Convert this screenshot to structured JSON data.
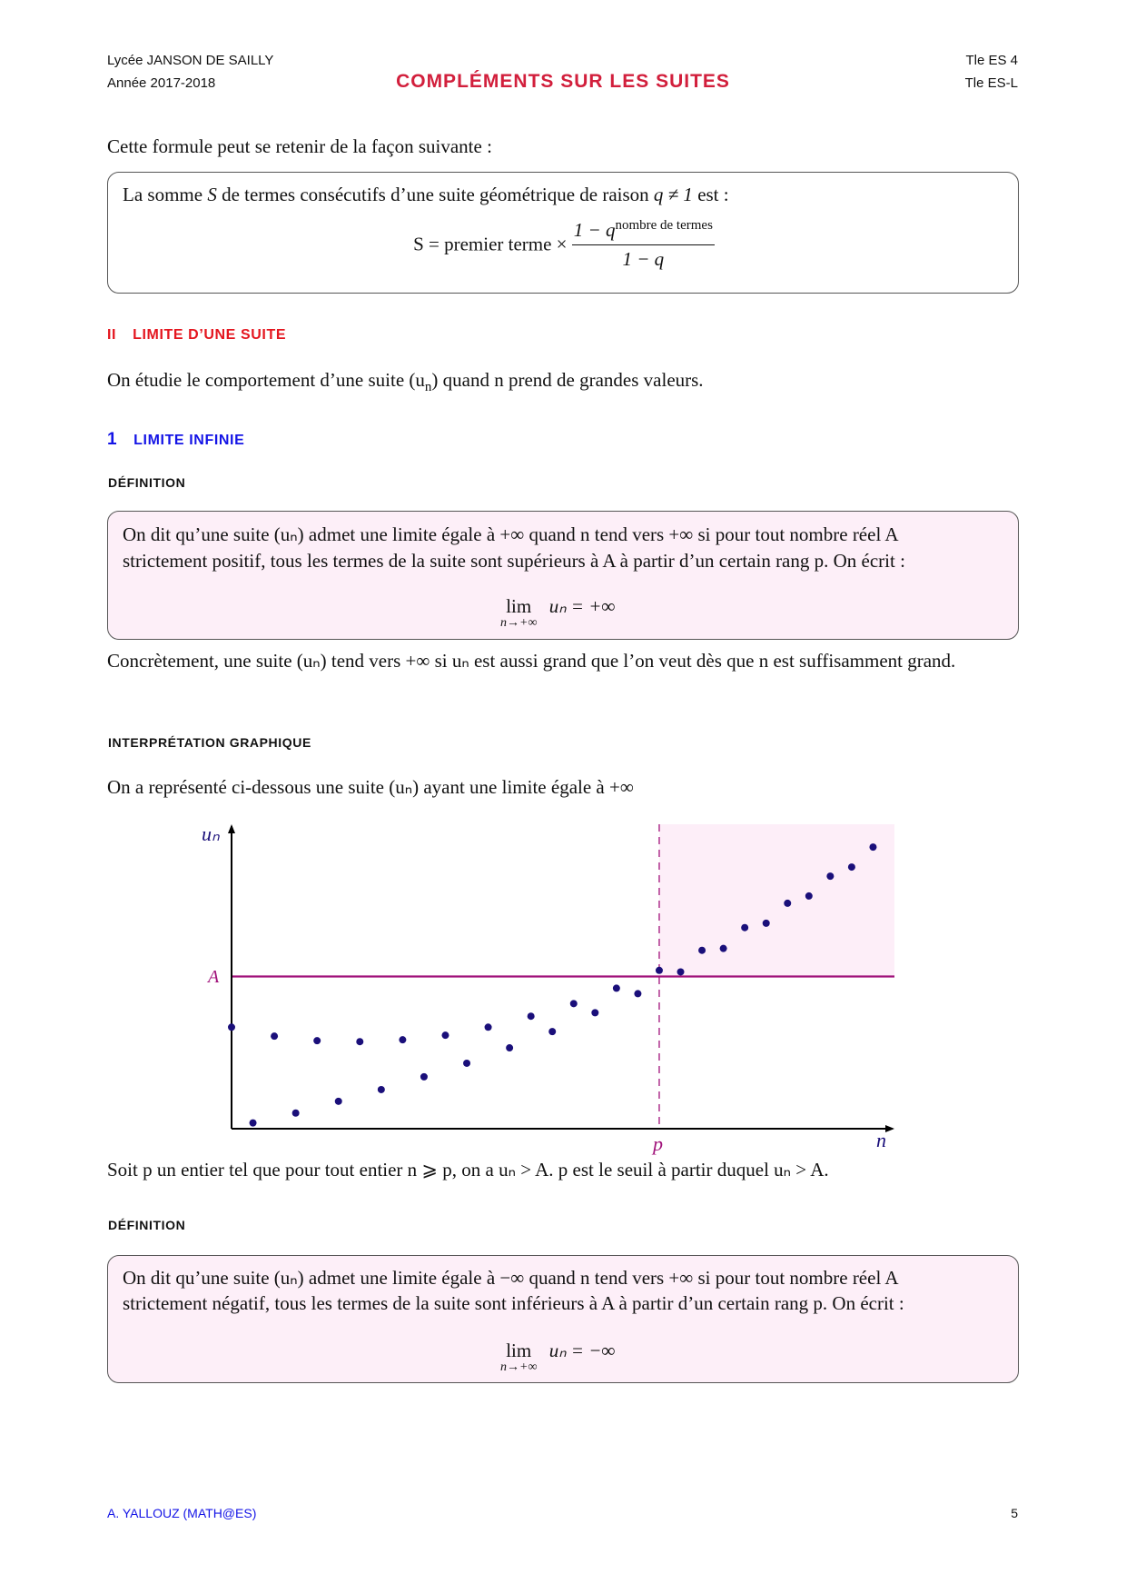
{
  "header": {
    "school": "Lycée JANSON DE SAILLY",
    "year": "Année 2017-2018",
    "title": "COMPLÉMENTS SUR LES SUITES",
    "class1": "Tle ES 4",
    "class2": "Tle ES-L"
  },
  "intro": "Cette formule peut se retenir de la façon suivante :",
  "formula_box": {
    "statement_before": "La somme ",
    "S": "S",
    "statement_middle": " de termes consécutifs d’une suite géométrique de raison ",
    "q_cond": "q ≠ 1",
    "statement_after": " est :",
    "lhs": "S = premier terme ×",
    "numerator": "1 − q",
    "exponent": "nombre de termes",
    "denominator": "1 − q"
  },
  "section2": {
    "number": "II",
    "title": "LIMITE D’UNE SUITE"
  },
  "section2_text": {
    "before": "On étudie le comportement d’une suite (u",
    "sub": "n",
    "after": ") quand n prend de grandes valeurs."
  },
  "subsection1": {
    "number": "1",
    "title": "LIMITE INFINIE"
  },
  "definition1": {
    "label": "DÉFINITION",
    "line1": "On dit qu’une suite (uₙ) admet une limite égale à +∞ quand n tend vers +∞ si pour tout nombre réel A",
    "line2": "strictement positif, tous les termes de la suite sont supérieurs à A à partir d’un certain rang p. On écrit :",
    "lim": "lim",
    "lim_under": "n→+∞",
    "lim_rhs": "uₙ = +∞"
  },
  "concretement": "Concrètement, une suite (uₙ) tend vers +∞ si uₙ est aussi grand que l’on veut dès que n est suffisamment grand.",
  "interpretation_label": "INTERPRÉTATION GRAPHIQUE",
  "interpretation_text": "On a représenté ci-dessous une suite (uₙ) ayant une limite égale à +∞",
  "chart_data": {
    "type": "scatter",
    "xlabel": "n",
    "ylabel": "uₙ",
    "threshold_label": "A",
    "threshold_value": 10,
    "rank_label": "p",
    "rank_value": 20,
    "xlim": [
      0,
      31
    ],
    "ylim": [
      0,
      20
    ],
    "grid": false,
    "shaded_region": "n ≥ p and u ≥ A",
    "x": [
      0,
      1,
      2,
      3,
      4,
      5,
      6,
      7,
      8,
      9,
      10,
      11,
      12,
      13,
      14,
      15,
      16,
      17,
      18,
      19,
      20,
      21,
      22,
      23,
      24,
      25,
      26,
      27,
      28,
      29,
      30
    ],
    "y": [
      6.67,
      0.38,
      6.08,
      1.03,
      5.78,
      1.8,
      5.72,
      2.57,
      5.84,
      3.41,
      6.14,
      4.3,
      6.67,
      5.31,
      7.39,
      6.38,
      8.22,
      7.62,
      9.23,
      8.87,
      10.4,
      10.3,
      11.72,
      11.84,
      13.21,
      13.5,
      14.81,
      15.29,
      16.59,
      17.19,
      18.5
    ],
    "colors": {
      "points": "#1a0f7a",
      "threshold": "#a0127a",
      "region": "#fdeef8",
      "axis": "#000000"
    }
  },
  "soit_text": "Soit p un entier tel que pour tout entier n ⩾ p, on a uₙ > A. p est le seuil à partir duquel uₙ > A.",
  "definition2": {
    "label": "DÉFINITION",
    "line1": "On dit qu’une suite (uₙ) admet une limite égale à −∞ quand n tend vers +∞ si pour tout nombre réel A",
    "line2": "strictement négatif, tous les termes de la suite sont inférieurs à A à partir d’un certain rang p. On écrit :",
    "lim": "lim",
    "lim_under": "n→+∞",
    "lim_rhs": "uₙ = −∞"
  },
  "footer": {
    "author": "A. YALLOUZ (MATH@ES)",
    "page": "5"
  },
  "colors": {
    "title_red": "#d21f3c",
    "section_red": "#e4161f",
    "subsection_blue": "#1414e6",
    "box_pink": "#fdeff8"
  }
}
